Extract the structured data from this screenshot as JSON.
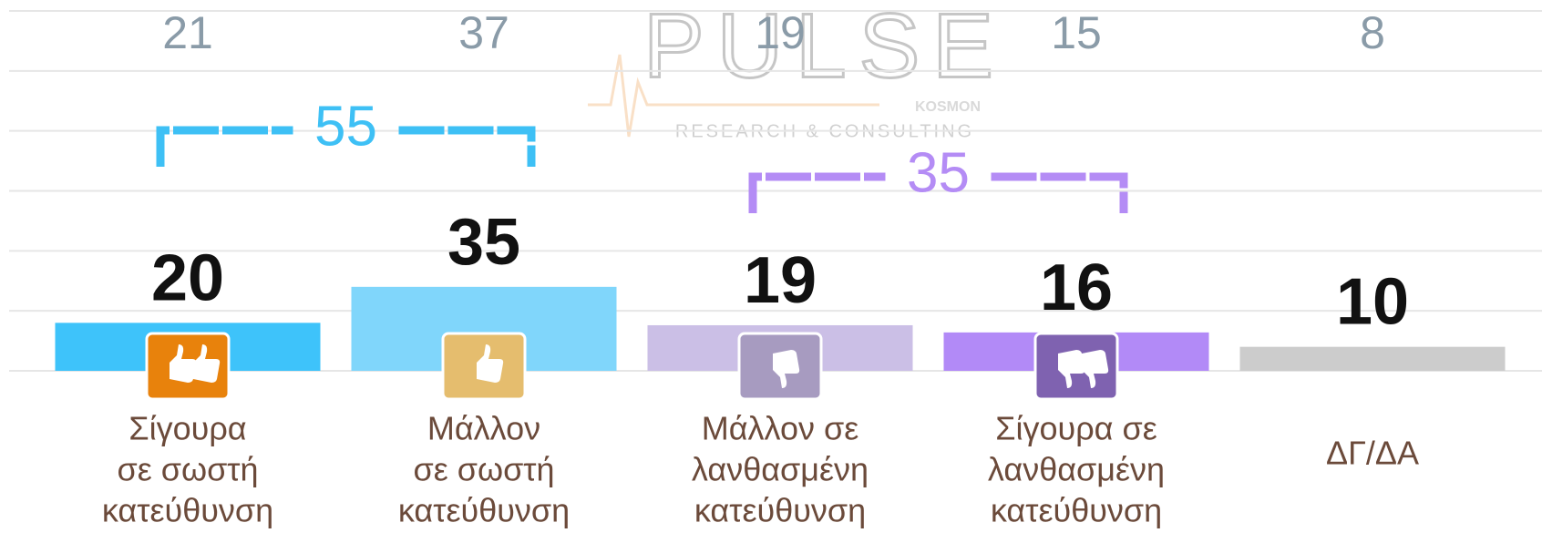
{
  "chart_data": {
    "type": "bar",
    "watermark": {
      "title": "PULSE",
      "brand": "KOSMON",
      "subtitle": "RESEARCH & CONSULTING"
    },
    "categories": [
      [
        "Σίγουρα",
        "σε σωστή",
        "κατεύθυνση"
      ],
      [
        "Μάλλον",
        "σε σωστή",
        "κατεύθυνση"
      ],
      [
        "Μάλλον σε",
        "λανθασμένη",
        "κατεύθυνση"
      ],
      [
        "Σίγουρα σε",
        "λανθασμένη",
        "κατεύθυνση"
      ],
      [
        "ΔΓ/ΔΑ"
      ]
    ],
    "values": [
      20,
      35,
      19,
      16,
      10
    ],
    "colors": [
      "#3ec3fa",
      "#80d6fb",
      "#cbbfe6",
      "#b28af7",
      "#cccccc"
    ],
    "previous_values": [
      21,
      37,
      19,
      15,
      8
    ],
    "groups": [
      {
        "value": 55,
        "from": 0,
        "to": 1,
        "color": "#3ec0f5"
      },
      {
        "value": 35,
        "from": 2,
        "to": 3,
        "color": "#b48cf5"
      }
    ],
    "ylim": [
      0,
      150
    ],
    "yticks": [
      0,
      25,
      50,
      75,
      100,
      125,
      150
    ],
    "grid": true
  }
}
